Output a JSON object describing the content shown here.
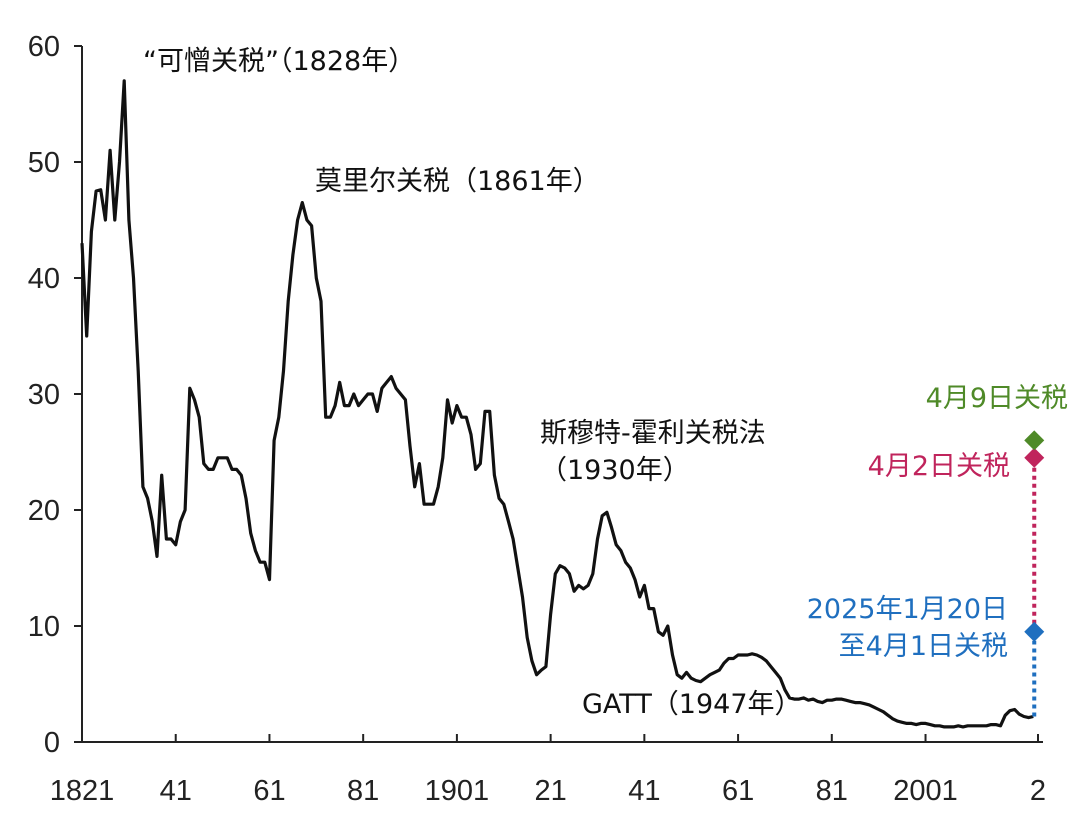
{
  "chart_data": {
    "type": "line",
    "title": "",
    "xlabel": "",
    "ylabel": "",
    "ylim": [
      0,
      60
    ],
    "xlim": [
      1821,
      2025
    ],
    "grid": false,
    "y_ticks": [
      0,
      10,
      20,
      30,
      40,
      50,
      60
    ],
    "x_ticks": [
      {
        "value": 1821,
        "label": "1821"
      },
      {
        "value": 1841,
        "label": "41"
      },
      {
        "value": 1861,
        "label": "61"
      },
      {
        "value": 1881,
        "label": "81"
      },
      {
        "value": 1901,
        "label": "1901"
      },
      {
        "value": 1921,
        "label": "21"
      },
      {
        "value": 1941,
        "label": "41"
      },
      {
        "value": 1961,
        "label": "61"
      },
      {
        "value": 1981,
        "label": "81"
      },
      {
        "value": 2001,
        "label": "2001"
      },
      {
        "value": 2025,
        "label": "2"
      }
    ],
    "series": [
      {
        "color": "#111111",
        "points": [
          [
            1821,
            43
          ],
          [
            1822,
            35
          ],
          [
            1823,
            44
          ],
          [
            1824,
            47.5
          ],
          [
            1825,
            47.6
          ],
          [
            1826,
            45
          ],
          [
            1827,
            51
          ],
          [
            1828,
            45
          ],
          [
            1829,
            50
          ],
          [
            1830,
            57
          ],
          [
            1831,
            45
          ],
          [
            1832,
            40
          ],
          [
            1833,
            32
          ],
          [
            1834,
            22
          ],
          [
            1835,
            21
          ],
          [
            1836,
            19
          ],
          [
            1837,
            16
          ],
          [
            1838,
            23
          ],
          [
            1839,
            17.5
          ],
          [
            1840,
            17.5
          ],
          [
            1841,
            17
          ],
          [
            1842,
            19
          ],
          [
            1843,
            20
          ],
          [
            1844,
            30.5
          ],
          [
            1845,
            29.5
          ],
          [
            1846,
            28
          ],
          [
            1847,
            24
          ],
          [
            1848,
            23.5
          ],
          [
            1849,
            23.5
          ],
          [
            1850,
            24.5
          ],
          [
            1851,
            24.5
          ],
          [
            1852,
            24.5
          ],
          [
            1853,
            23.5
          ],
          [
            1854,
            23.5
          ],
          [
            1855,
            23
          ],
          [
            1856,
            21
          ],
          [
            1857,
            18
          ],
          [
            1858,
            16.5
          ],
          [
            1859,
            15.5
          ],
          [
            1860,
            15.5
          ],
          [
            1861,
            14
          ],
          [
            1862,
            26
          ],
          [
            1863,
            28
          ],
          [
            1864,
            32
          ],
          [
            1865,
            38
          ],
          [
            1866,
            42
          ],
          [
            1867,
            45
          ],
          [
            1868,
            46.5
          ],
          [
            1869,
            45
          ],
          [
            1870,
            44.5
          ],
          [
            1871,
            40
          ],
          [
            1872,
            38
          ],
          [
            1873,
            28
          ],
          [
            1874,
            28
          ],
          [
            1875,
            29
          ],
          [
            1876,
            31
          ],
          [
            1877,
            29
          ],
          [
            1878,
            29
          ],
          [
            1879,
            30
          ],
          [
            1880,
            29
          ],
          [
            1881,
            29.5
          ],
          [
            1882,
            30
          ],
          [
            1883,
            30
          ],
          [
            1884,
            28.5
          ],
          [
            1885,
            30.5
          ],
          [
            1886,
            31
          ],
          [
            1887,
            31.5
          ],
          [
            1888,
            30.5
          ],
          [
            1889,
            30
          ],
          [
            1890,
            29.5
          ],
          [
            1891,
            25.5
          ],
          [
            1892,
            22
          ],
          [
            1893,
            24
          ],
          [
            1894,
            20.5
          ],
          [
            1895,
            20.5
          ],
          [
            1896,
            20.5
          ],
          [
            1897,
            22
          ],
          [
            1898,
            24.5
          ],
          [
            1899,
            29.5
          ],
          [
            1900,
            27.5
          ],
          [
            1901,
            29
          ],
          [
            1902,
            28
          ],
          [
            1903,
            28
          ],
          [
            1904,
            26.5
          ],
          [
            1905,
            23.5
          ],
          [
            1906,
            24
          ],
          [
            1907,
            28.5
          ],
          [
            1908,
            28.5
          ],
          [
            1909,
            23
          ],
          [
            1910,
            21
          ],
          [
            1911,
            20.5
          ],
          [
            1912,
            19
          ],
          [
            1913,
            17.5
          ],
          [
            1914,
            15
          ],
          [
            1915,
            12.5
          ],
          [
            1916,
            9
          ],
          [
            1917,
            7
          ],
          [
            1918,
            5.8
          ],
          [
            1919,
            6.2
          ],
          [
            1920,
            6.5
          ],
          [
            1921,
            11
          ],
          [
            1922,
            14.5
          ],
          [
            1923,
            15.2
          ],
          [
            1924,
            15
          ],
          [
            1925,
            14.5
          ],
          [
            1926,
            13
          ],
          [
            1927,
            13.5
          ],
          [
            1928,
            13.2
          ],
          [
            1929,
            13.5
          ],
          [
            1930,
            14.5
          ],
          [
            1931,
            17.5
          ],
          [
            1932,
            19.5
          ],
          [
            1933,
            19.8
          ],
          [
            1934,
            18.5
          ],
          [
            1935,
            17
          ],
          [
            1936,
            16.5
          ],
          [
            1937,
            15.5
          ],
          [
            1938,
            15
          ],
          [
            1939,
            14
          ],
          [
            1940,
            12.5
          ],
          [
            1941,
            13.5
          ],
          [
            1942,
            11.5
          ],
          [
            1943,
            11.5
          ],
          [
            1944,
            9.5
          ],
          [
            1945,
            9.2
          ],
          [
            1946,
            10
          ],
          [
            1947,
            7.5
          ],
          [
            1948,
            5.8
          ],
          [
            1949,
            5.5
          ],
          [
            1950,
            6
          ],
          [
            1951,
            5.5
          ],
          [
            1952,
            5.3
          ],
          [
            1953,
            5.2
          ],
          [
            1954,
            5.5
          ],
          [
            1955,
            5.8
          ],
          [
            1956,
            6
          ],
          [
            1957,
            6.2
          ],
          [
            1958,
            6.8
          ],
          [
            1959,
            7.2
          ],
          [
            1960,
            7.2
          ],
          [
            1961,
            7.5
          ],
          [
            1962,
            7.5
          ],
          [
            1963,
            7.5
          ],
          [
            1964,
            7.6
          ],
          [
            1965,
            7.5
          ],
          [
            1966,
            7.3
          ],
          [
            1967,
            7
          ],
          [
            1968,
            6.5
          ],
          [
            1969,
            6
          ],
          [
            1970,
            5.5
          ],
          [
            1971,
            4.5
          ],
          [
            1972,
            3.8
          ],
          [
            1973,
            3.7
          ],
          [
            1974,
            3.7
          ],
          [
            1975,
            3.8
          ],
          [
            1976,
            3.6
          ],
          [
            1977,
            3.7
          ],
          [
            1978,
            3.5
          ],
          [
            1979,
            3.4
          ],
          [
            1980,
            3.6
          ],
          [
            1981,
            3.6
          ],
          [
            1982,
            3.7
          ],
          [
            1983,
            3.7
          ],
          [
            1984,
            3.6
          ],
          [
            1985,
            3.5
          ],
          [
            1986,
            3.4
          ],
          [
            1987,
            3.4
          ],
          [
            1988,
            3.3
          ],
          [
            1989,
            3.2
          ],
          [
            1990,
            3.0
          ],
          [
            1991,
            2.8
          ],
          [
            1992,
            2.6
          ],
          [
            1993,
            2.3
          ],
          [
            1994,
            2.0
          ],
          [
            1995,
            1.8
          ],
          [
            1996,
            1.7
          ],
          [
            1997,
            1.6
          ],
          [
            1998,
            1.6
          ],
          [
            1999,
            1.5
          ],
          [
            2000,
            1.6
          ],
          [
            2001,
            1.6
          ],
          [
            2002,
            1.5
          ],
          [
            2003,
            1.4
          ],
          [
            2004,
            1.4
          ],
          [
            2005,
            1.3
          ],
          [
            2006,
            1.3
          ],
          [
            2007,
            1.3
          ],
          [
            2008,
            1.4
          ],
          [
            2009,
            1.3
          ],
          [
            2010,
            1.4
          ],
          [
            2011,
            1.4
          ],
          [
            2012,
            1.4
          ],
          [
            2013,
            1.4
          ],
          [
            2014,
            1.4
          ],
          [
            2015,
            1.5
          ],
          [
            2016,
            1.5
          ],
          [
            2017,
            1.4
          ],
          [
            2018,
            2.3
          ],
          [
            2019,
            2.7
          ],
          [
            2020,
            2.8
          ],
          [
            2021,
            2.4
          ],
          [
            2022,
            2.2
          ],
          [
            2023,
            2.1
          ],
          [
            2024,
            2.2
          ]
        ]
      }
    ],
    "markers": [
      {
        "label": "2025年1月20日\n至4月1日关税",
        "value": 9.5,
        "year": 2024.2,
        "color": "#1f6fbf",
        "shape": "diamond",
        "dotted_from": 2.2
      },
      {
        "label": "4月2日关税",
        "value": 24.5,
        "year": 2024.2,
        "color": "#c0245c",
        "shape": "diamond",
        "dotted_from": 9.5
      },
      {
        "label": "4月9日关税",
        "value": 26,
        "year": 2024.2,
        "color": "#4f8a28",
        "shape": "diamond"
      }
    ],
    "annotations": [
      {
        "text": "“可憎关税”（1828年）",
        "line": 1
      },
      {
        "text": "莫里尔关税（1861年）",
        "line": 1
      },
      {
        "text": "斯穆特-霍利关税法",
        "line": 1
      },
      {
        "text": "（1930年）",
        "line": 2
      },
      {
        "text": "GATT（1947年）",
        "line": 1
      }
    ]
  }
}
